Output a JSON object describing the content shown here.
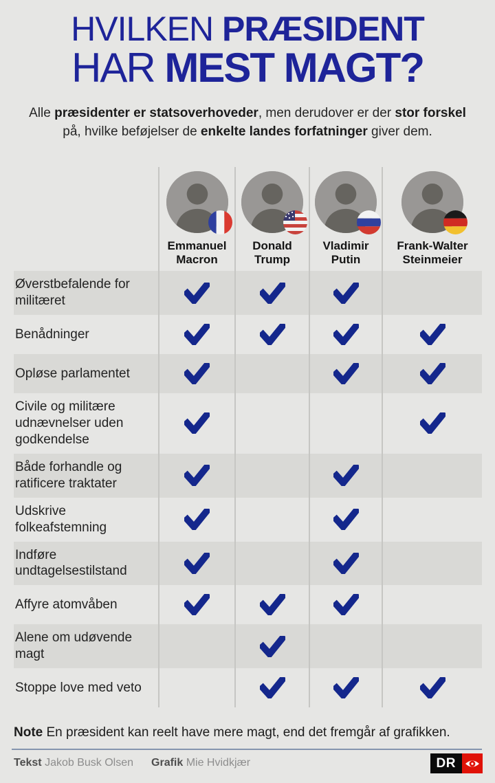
{
  "page": {
    "background": "#e6e6e4",
    "accent_blue": "#1e2499",
    "check_blue": "#14278c",
    "dark_row": "#d9d9d6",
    "divider": "#c6c6c3",
    "rule_color": "#8595ae"
  },
  "title": {
    "line1_regular": "HVILKEN ",
    "line1_bold": "PRÆSIDENT",
    "line2_regular": "HAR ",
    "line2_bold": "MEST MAGT?"
  },
  "intro": {
    "segments": [
      {
        "text": "Alle ",
        "bold": false
      },
      {
        "text": "præsidenter er statsoverhoveder",
        "bold": true
      },
      {
        "text": ", men derudover er der ",
        "bold": false
      },
      {
        "text": "stor forskel",
        "bold": true
      },
      {
        "text": " på, hvilke beføjelser de ",
        "bold": false
      },
      {
        "text": "enkelte landes forfatninger",
        "bold": true
      },
      {
        "text": " giver dem.",
        "bold": false
      }
    ]
  },
  "presidents": [
    {
      "name_lines": [
        "Emmanuel",
        "Macron"
      ],
      "country": "Frankrig",
      "flag": "fr"
    },
    {
      "name_lines": [
        "Donald",
        "Trump"
      ],
      "country": "USA",
      "flag": "us"
    },
    {
      "name_lines": [
        "Vladimir",
        "Putin"
      ],
      "country": "Rusland",
      "flag": "ru"
    },
    {
      "name_lines": [
        "Frank-Walter",
        "Steinmeier"
      ],
      "country": "Tyskland",
      "flag": "de"
    }
  ],
  "flag_colors": {
    "fr": {
      "left": "#2e3f9f",
      "mid": "#f3f3f3",
      "right": "#da3a31"
    },
    "us": {
      "stripe_red": "#c8423c",
      "stripe_white": "#f2f2f2",
      "canton": "#3a3a6e",
      "stars": "#ffffff"
    },
    "ru": {
      "top": "#f3f3f3",
      "mid": "#31419e",
      "bottom": "#d23a30"
    },
    "de": {
      "top": "#1a1a1a",
      "mid": "#d02b23",
      "bottom": "#f2c02e"
    }
  },
  "powers": [
    {
      "label": "Øverstbefalende for militæret",
      "checks": [
        true,
        true,
        true,
        false
      ]
    },
    {
      "label": "Benådninger",
      "checks": [
        true,
        true,
        true,
        true
      ]
    },
    {
      "label": "Opløse parlamentet",
      "checks": [
        true,
        false,
        true,
        true
      ]
    },
    {
      "label": "Civile og militære udnævnelser uden godkendelse",
      "checks": [
        true,
        false,
        false,
        true
      ]
    },
    {
      "label": "Både forhandle og ratificere traktater",
      "checks": [
        true,
        false,
        true,
        false
      ]
    },
    {
      "label": "Udskrive folkeafstemning",
      "checks": [
        true,
        false,
        true,
        false
      ]
    },
    {
      "label": "Indføre undtagelsestilstand",
      "checks": [
        true,
        false,
        true,
        false
      ]
    },
    {
      "label": "Affyre atomvåben",
      "checks": [
        true,
        true,
        true,
        false
      ]
    },
    {
      "label": "Alene om udøvende magt",
      "checks": [
        false,
        true,
        false,
        false
      ]
    },
    {
      "label": "Stoppe love med veto",
      "checks": [
        false,
        true,
        true,
        true
      ]
    }
  ],
  "note": {
    "label": "Note",
    "text": " En præsident kan reelt have mere magt, end det fremgår af grafikken."
  },
  "credits": {
    "pairs": [
      {
        "role": "Tekst",
        "name": "Jakob Busk Olsen"
      },
      {
        "role": "Grafik",
        "name": "Mie Hvidkjær"
      }
    ]
  },
  "logo": {
    "text": "DR"
  },
  "chart_data": {
    "type": "table",
    "title": "HVILKEN PRÆSIDENT HAR MEST MAGT?",
    "subtitle": "Alle præsidenter er statsoverhoveder, men derudover er der stor forskel på, hvilke beføjelser de enkelte landes forfatninger giver dem.",
    "columns": [
      "Emmanuel Macron",
      "Donald Trump",
      "Vladimir Putin",
      "Frank-Walter Steinmeier"
    ],
    "rows": [
      "Øverstbefalende for militæret",
      "Benådninger",
      "Opløse parlamentet",
      "Civile og militære udnævnelser uden godkendelse",
      "Både forhandle og ratificere traktater",
      "Udskrive folkeafstemning",
      "Indføre undtagelsestilstand",
      "Affyre atomvåben",
      "Alene om udøvende magt",
      "Stoppe love med veto"
    ],
    "values": [
      [
        1,
        1,
        1,
        0
      ],
      [
        1,
        1,
        1,
        1
      ],
      [
        1,
        0,
        1,
        1
      ],
      [
        1,
        0,
        0,
        1
      ],
      [
        1,
        0,
        1,
        0
      ],
      [
        1,
        0,
        1,
        0
      ],
      [
        1,
        0,
        1,
        0
      ],
      [
        1,
        1,
        1,
        0
      ],
      [
        0,
        1,
        0,
        0
      ],
      [
        0,
        1,
        1,
        1
      ]
    ],
    "note": "Note En præsident kan reelt have mere magt, end det fremgår af grafikken.",
    "legend_position": "none",
    "grid": "alternating-row-bands"
  }
}
